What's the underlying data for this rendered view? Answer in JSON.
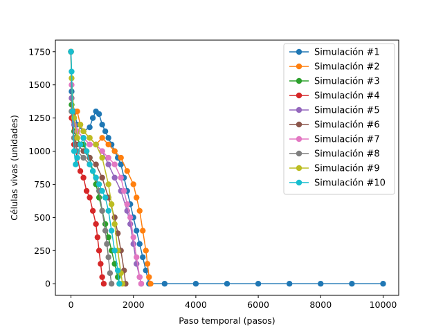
{
  "chart_data": {
    "type": "line",
    "title": "",
    "xlabel": "Paso temporal (pasos)",
    "ylabel": "Células vivas (unidades)",
    "xlim": [
      -500,
      10500
    ],
    "ylim": [
      -87.5,
      1837.5
    ],
    "xticks": [
      0,
      2000,
      4000,
      6000,
      8000,
      10000
    ],
    "xtick_labels": [
      "0",
      "2000",
      "4000",
      "6000",
      "8000",
      "10000"
    ],
    "yticks": [
      0,
      250,
      500,
      750,
      1000,
      1250,
      1500,
      1750
    ],
    "ytick_labels": [
      "0",
      "250",
      "500",
      "750",
      "1000",
      "1250",
      "1500",
      "1750"
    ],
    "grid": false,
    "legend_position": "top-right",
    "marker": "circle",
    "series": [
      {
        "name": "Simulación #1",
        "color": "#1f77b4",
        "x": [
          0,
          20,
          100,
          200,
          400,
          600,
          700,
          800,
          900,
          1000,
          1100,
          1200,
          1300,
          1400,
          1500,
          1600,
          1700,
          1800,
          1900,
          2000,
          2100,
          2200,
          2300,
          2400,
          2500,
          3000,
          4000,
          5000,
          6000,
          7000,
          8000,
          9000,
          10000
        ],
        "y": [
          1750,
          1450,
          1300,
          1200,
          1150,
          1180,
          1250,
          1300,
          1280,
          1200,
          1150,
          1100,
          1050,
          1000,
          950,
          900,
          800,
          700,
          600,
          500,
          400,
          300,
          200,
          100,
          0,
          0,
          0,
          0,
          0,
          0,
          0,
          0,
          0
        ]
      },
      {
        "name": "Simulación #2",
        "color": "#ff7f0e",
        "x": [
          0,
          20,
          100,
          200,
          300,
          400,
          600,
          800,
          1000,
          1200,
          1400,
          1600,
          1800,
          2000,
          2100,
          2200,
          2300,
          2400,
          2450,
          2500,
          2550
        ],
        "y": [
          1750,
          1400,
          1250,
          1300,
          1200,
          1150,
          1100,
          1050,
          1100,
          1050,
          1000,
          950,
          850,
          750,
          650,
          550,
          400,
          250,
          150,
          50,
          0
        ]
      },
      {
        "name": "Simulación #3",
        "color": "#2ca02c",
        "x": [
          0,
          20,
          100,
          200,
          300,
          400,
          500,
          600,
          700,
          800,
          900,
          1000,
          1100,
          1200,
          1300,
          1400,
          1500,
          1550
        ],
        "y": [
          1750,
          1350,
          1150,
          1100,
          1050,
          1050,
          1000,
          950,
          850,
          750,
          650,
          550,
          450,
          350,
          250,
          150,
          50,
          0
        ]
      },
      {
        "name": "Simulación #4",
        "color": "#d62728",
        "x": [
          0,
          20,
          100,
          200,
          300,
          400,
          500,
          600,
          700,
          800,
          850,
          900,
          950,
          1000,
          1050
        ],
        "y": [
          1750,
          1250,
          1050,
          950,
          850,
          800,
          700,
          650,
          550,
          450,
          350,
          250,
          150,
          50,
          0
        ]
      },
      {
        "name": "Simulación #5",
        "color": "#9467bd",
        "x": [
          0,
          20,
          100,
          200,
          400,
          600,
          800,
          1000,
          1200,
          1400,
          1600,
          1800,
          1900,
          2000,
          2100,
          2200,
          2250
        ],
        "y": [
          1750,
          1400,
          1200,
          1150,
          1100,
          1050,
          1050,
          1000,
          900,
          800,
          700,
          550,
          450,
          300,
          150,
          50,
          0
        ]
      },
      {
        "name": "Simulación #6",
        "color": "#8c564b",
        "x": [
          0,
          20,
          100,
          200,
          400,
          600,
          800,
          1000,
          1200,
          1400,
          1500,
          1600,
          1700,
          1750
        ],
        "y": [
          1750,
          1300,
          1100,
          1050,
          1000,
          950,
          900,
          800,
          650,
          500,
          380,
          250,
          100,
          0
        ]
      },
      {
        "name": "Simulación #7",
        "color": "#e377c2",
        "x": [
          0,
          20,
          100,
          200,
          400,
          600,
          800,
          1000,
          1200,
          1400,
          1600,
          1700,
          1800,
          1900,
          2000,
          2100,
          2200,
          2250
        ],
        "y": [
          1750,
          1500,
          1250,
          1150,
          1100,
          1050,
          1050,
          1000,
          950,
          900,
          800,
          700,
          600,
          500,
          350,
          200,
          50,
          0
        ]
      },
      {
        "name": "Simulación #8",
        "color": "#7f7f7f",
        "x": [
          0,
          20,
          100,
          200,
          400,
          600,
          800,
          900,
          1000,
          1100,
          1150,
          1200,
          1250,
          1300
        ],
        "y": [
          1750,
          1300,
          1100,
          1000,
          950,
          900,
          800,
          700,
          550,
          400,
          300,
          200,
          80,
          0
        ]
      },
      {
        "name": "Simulación #9",
        "color": "#bcbd22",
        "x": [
          0,
          20,
          100,
          200,
          300,
          400,
          600,
          800,
          1000,
          1200,
          1300,
          1400,
          1500,
          1600,
          1650
        ],
        "y": [
          1750,
          1550,
          1250,
          1100,
          1200,
          1150,
          1100,
          1050,
          950,
          750,
          600,
          450,
          250,
          80,
          0
        ]
      },
      {
        "name": "Simulación #10",
        "color": "#17becf",
        "x": [
          0,
          20,
          50,
          100,
          150,
          200,
          300,
          400,
          500,
          600,
          700,
          800,
          900,
          1000,
          1100,
          1200,
          1300,
          1400,
          1500,
          1550
        ],
        "y": [
          1750,
          1600,
          1300,
          1000,
          900,
          950,
          1050,
          1100,
          1000,
          900,
          850,
          800,
          750,
          700,
          650,
          550,
          400,
          250,
          100,
          0
        ]
      }
    ]
  }
}
